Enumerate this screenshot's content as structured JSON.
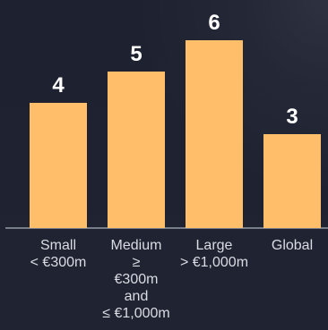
{
  "chart_data": {
    "type": "bar",
    "categories": [
      "Small\n< €300m",
      "Medium\n≥\n€300m\nand\n≤ €1,000m",
      "Large\n> €1,000m",
      "Global"
    ],
    "values": [
      4,
      5,
      6,
      3
    ],
    "ylim": [
      0,
      6
    ],
    "grid": false,
    "colors": {
      "bar": "#ffbe69",
      "text": "#ffffff",
      "axis": "#aeb3bf",
      "tick_text": "#d9dce3"
    }
  }
}
